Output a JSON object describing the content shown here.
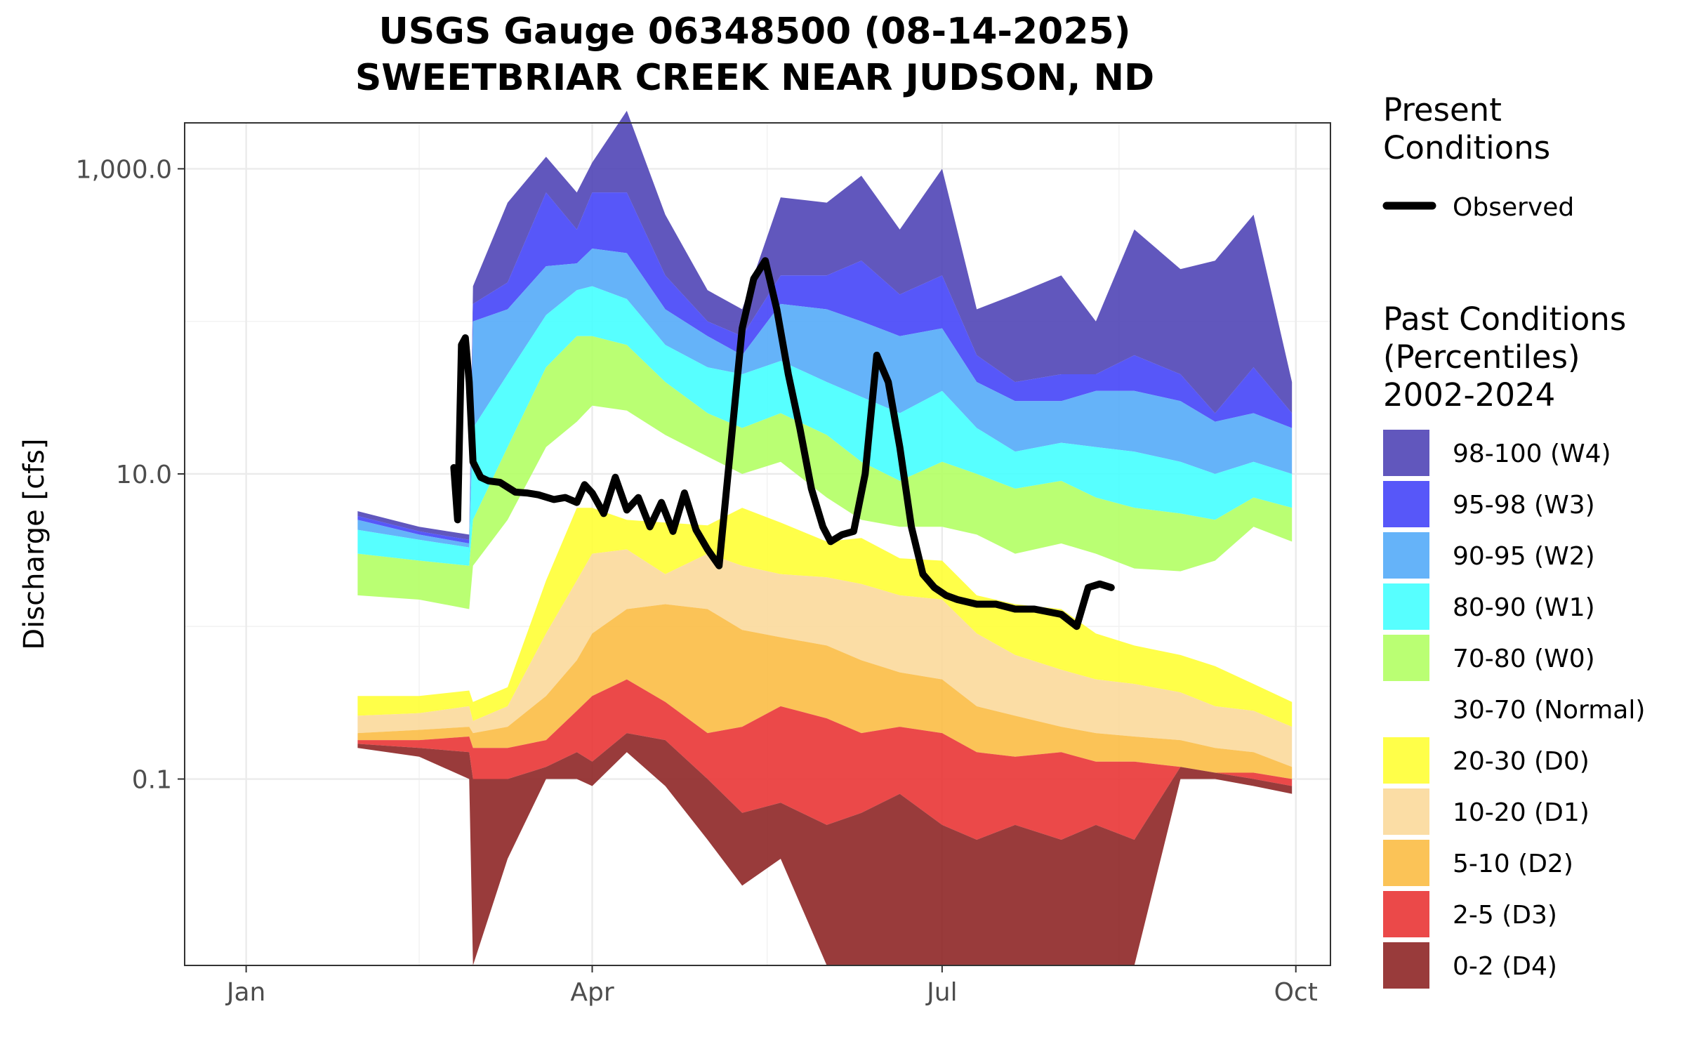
{
  "chart_data": {
    "type": "area",
    "title": "USGS Gauge 06348500 (08-14-2025)",
    "subtitle": "SWEETBRIAR CREEK NEAR JUDSON, ND",
    "ylabel": "Discharge [cfs]",
    "xlabel": "",
    "y_scale": "log10",
    "ylim": [
      0.006,
      2000
    ],
    "y_ticks": [
      0.1,
      10,
      1000
    ],
    "y_tick_labels": [
      "0.1",
      "10.0",
      "1,000.0"
    ],
    "xlim": [
      "2025-12-16",
      "2026-10-10"
    ],
    "x_ticks": [
      "2026-01-01",
      "2026-04-01",
      "2026-07-01",
      "2026-10-01"
    ],
    "x_tick_labels": [
      "Jan",
      "Apr",
      "Jul",
      "Oct"
    ],
    "grid": true,
    "legend_placement": "right",
    "legend": {
      "present_title": "Present\nConditions",
      "observed_label": "Observed",
      "past_title": "Past Conditions\n(Percentiles)\n2002-2024"
    },
    "band_colors": {
      "W4": "#4b40b4",
      "W3": "#4040f8",
      "W2": "#50a8f8",
      "W1": "#40ffff",
      "W0": "#b0ff60",
      "Normal": "#ffffff",
      "D0": "#ffff30",
      "D1": "#fbd898",
      "D2": "#fbbb40",
      "D3": "#e83030",
      "D4": "#8b2020"
    },
    "bands": [
      {
        "key": "W4",
        "label": "98-100 (W4)"
      },
      {
        "key": "W3",
        "label": "95-98 (W3)"
      },
      {
        "key": "W2",
        "label": "90-95 (W2)"
      },
      {
        "key": "W1",
        "label": "80-90 (W1)"
      },
      {
        "key": "W0",
        "label": "70-80 (W0)"
      },
      {
        "key": "Normal",
        "label": "30-70 (Normal)"
      },
      {
        "key": "D0",
        "label": "20-30 (D0)"
      },
      {
        "key": "D1",
        "label": "10-20 (D1)"
      },
      {
        "key": "D2",
        "label": "5-10 (D2)"
      },
      {
        "key": "D3",
        "label": "2-5 (D3)"
      },
      {
        "key": "D4",
        "label": "0-2 (D4)"
      }
    ],
    "percentile_dates": [
      "2026-01-30",
      "2026-02-15",
      "2026-02-28",
      "2026-03-01",
      "2026-03-10",
      "2026-03-20",
      "2026-03-28",
      "2026-04-01",
      "2026-04-10",
      "2026-04-20",
      "2026-05-01",
      "2026-05-10",
      "2026-05-20",
      "2026-06-01",
      "2026-06-10",
      "2026-06-20",
      "2026-07-01",
      "2026-07-10",
      "2026-07-20",
      "2026-08-01",
      "2026-08-10",
      "2026-08-20",
      "2026-09-01",
      "2026-09-10",
      "2026-09-20",
      "2026-09-30"
    ],
    "percentiles": {
      "p100": [
        5.7,
        4.5,
        4,
        170,
        600,
        1200,
        700,
        1100,
        2400,
        500,
        160,
        120,
        650,
        600,
        900,
        400,
        1000,
        120,
        150,
        200,
        100,
        400,
        220,
        250,
        500,
        40
      ],
      "p98": [
        5.3,
        4.2,
        3.7,
        130,
        180,
        700,
        400,
        700,
        700,
        200,
        100,
        80,
        200,
        200,
        250,
        150,
        200,
        60,
        40,
        45,
        45,
        60,
        45,
        25,
        50,
        25
      ],
      "p95": [
        5.0,
        4.0,
        3.5,
        100,
        120,
        230,
        240,
        300,
        280,
        120,
        80,
        60,
        130,
        120,
        100,
        80,
        90,
        40,
        30,
        30,
        35,
        35,
        30,
        22,
        25,
        20
      ],
      "p90": [
        4.3,
        3.7,
        3.3,
        20,
        45,
        110,
        160,
        170,
        140,
        70,
        50,
        45,
        55,
        40,
        32,
        25,
        35,
        20,
        14,
        16,
        15,
        14,
        12,
        10,
        12,
        10
      ],
      "p80": [
        3.0,
        2.7,
        2.5,
        5,
        15,
        50,
        80,
        80,
        70,
        40,
        25,
        20,
        25,
        18,
        12,
        9,
        12,
        10,
        8,
        9,
        7,
        6,
        5.5,
        5,
        7,
        6
      ],
      "p70": [
        1.6,
        1.5,
        1.3,
        2.5,
        5,
        15,
        22,
        28,
        26,
        18,
        13,
        10,
        12,
        7,
        5,
        4.5,
        4.5,
        4,
        3,
        3.5,
        3,
        2.4,
        2.3,
        2.7,
        4.5,
        3.6
      ],
      "p30": [
        0.35,
        0.35,
        0.38,
        0.32,
        0.4,
        2,
        6,
        6,
        5,
        4.8,
        4.6,
        6,
        4.8,
        3.6,
        3.8,
        2.8,
        2.7,
        1.6,
        1.4,
        1.3,
        0.9,
        0.75,
        0.65,
        0.55,
        0.42,
        0.32
      ],
      "p20": [
        0.26,
        0.27,
        0.3,
        0.24,
        0.3,
        0.9,
        2,
        3,
        3.2,
        2.2,
        3,
        2.5,
        2.2,
        2.1,
        1.9,
        1.6,
        1.5,
        0.9,
        0.65,
        0.52,
        0.45,
        0.42,
        0.37,
        0.3,
        0.28,
        0.22
      ],
      "p10": [
        0.2,
        0.21,
        0.22,
        0.2,
        0.22,
        0.35,
        0.6,
        0.9,
        1.3,
        1.4,
        1.3,
        0.95,
        0.85,
        0.75,
        0.6,
        0.5,
        0.45,
        0.3,
        0.26,
        0.22,
        0.2,
        0.19,
        0.18,
        0.16,
        0.15,
        0.12
      ],
      "p5": [
        0.18,
        0.18,
        0.19,
        0.16,
        0.16,
        0.18,
        0.28,
        0.35,
        0.45,
        0.32,
        0.2,
        0.22,
        0.3,
        0.25,
        0.2,
        0.22,
        0.2,
        0.15,
        0.14,
        0.15,
        0.13,
        0.13,
        0.12,
        0.11,
        0.11,
        0.1
      ],
      "p2": [
        0.17,
        0.16,
        0.15,
        0.1,
        0.1,
        0.12,
        0.15,
        0.13,
        0.2,
        0.18,
        0.1,
        0.06,
        0.07,
        0.05,
        0.06,
        0.08,
        0.05,
        0.04,
        0.05,
        0.04,
        0.05,
        0.04,
        0.12,
        0.11,
        0.1,
        0.09
      ],
      "p0": [
        0.16,
        0.14,
        0.1,
        0.006,
        0.03,
        0.1,
        0.1,
        0.09,
        0.15,
        0.09,
        0.04,
        0.02,
        0.03,
        0.006,
        0.006,
        0.006,
        0.006,
        0.006,
        0.006,
        0.006,
        0.006,
        0.006,
        0.1,
        0.1,
        0.09,
        0.08
      ]
    },
    "observed": {
      "name": "Observed",
      "x": [
        "2026-02-24",
        "2026-02-25",
        "2026-02-26",
        "2026-02-27",
        "2026-02-28",
        "2026-03-01",
        "2026-03-03",
        "2026-03-05",
        "2026-03-08",
        "2026-03-12",
        "2026-03-15",
        "2026-03-18",
        "2026-03-22",
        "2026-03-25",
        "2026-03-28",
        "2026-03-30",
        "2026-04-01",
        "2026-04-04",
        "2026-04-07",
        "2026-04-10",
        "2026-04-13",
        "2026-04-16",
        "2026-04-19",
        "2026-04-22",
        "2026-04-25",
        "2026-04-28",
        "2026-05-01",
        "2026-05-04",
        "2026-05-07",
        "2026-05-10",
        "2026-05-13",
        "2026-05-16",
        "2026-05-19",
        "2026-05-22",
        "2026-05-25",
        "2026-05-28",
        "2026-05-31",
        "2026-06-02",
        "2026-06-05",
        "2026-06-08",
        "2026-06-11",
        "2026-06-14",
        "2026-06-17",
        "2026-06-20",
        "2026-06-23",
        "2026-06-26",
        "2026-06-29",
        "2026-07-02",
        "2026-07-05",
        "2026-07-10",
        "2026-07-15",
        "2026-07-20",
        "2026-07-25",
        "2026-08-01",
        "2026-08-05",
        "2026-08-08",
        "2026-08-11",
        "2026-08-14"
      ],
      "y": [
        11,
        5,
        70,
        78,
        40,
        12,
        9.5,
        9,
        8.8,
        7.6,
        7.5,
        7.3,
        6.8,
        7,
        6.5,
        8.5,
        7.5,
        5.5,
        9.5,
        5.8,
        7,
        4.5,
        6.5,
        4.2,
        7.5,
        4.3,
        3.2,
        2.5,
        15,
        90,
        190,
        250,
        120,
        45,
        20,
        8,
        4.5,
        3.6,
        4,
        4.2,
        10,
        60,
        40,
        15,
        4.5,
        2.2,
        1.8,
        1.6,
        1.5,
        1.4,
        1.4,
        1.3,
        1.3,
        1.2,
        1.0,
        1.8,
        1.9,
        1.8
      ]
    }
  }
}
